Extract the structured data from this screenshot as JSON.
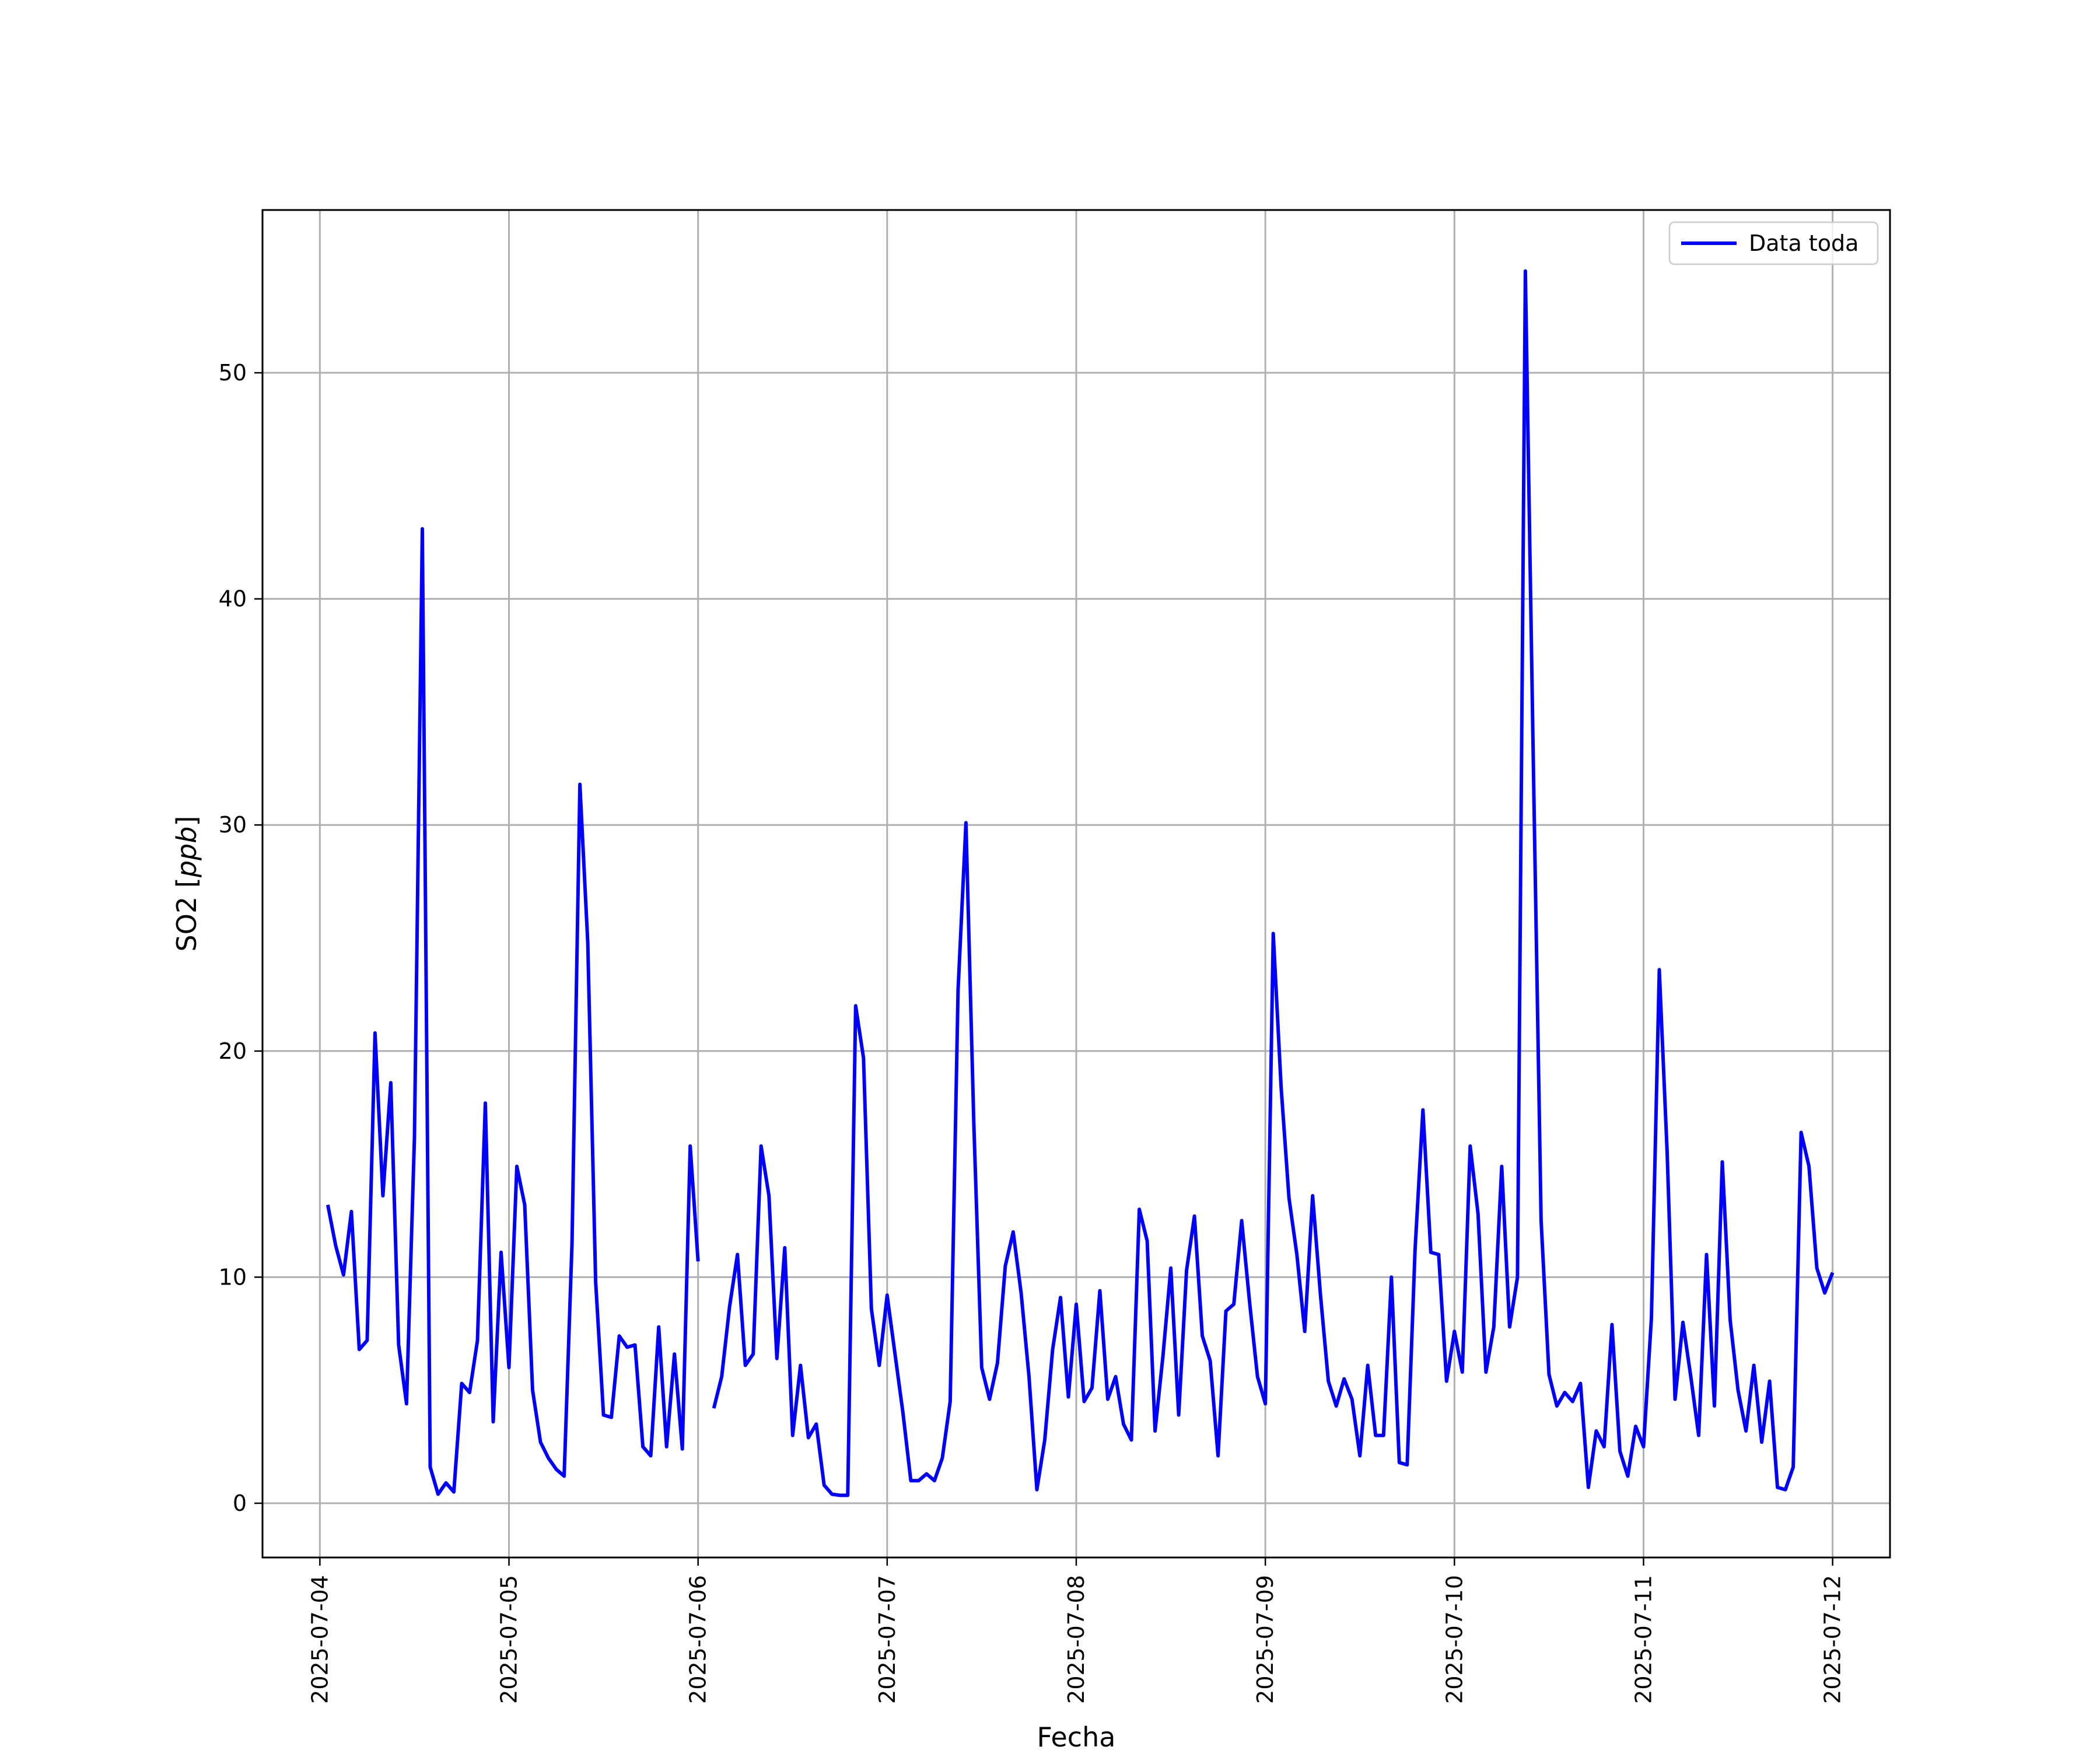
{
  "colors": {
    "series": "#0000ff",
    "grid": "#b0b0b0",
    "frame": "#000000",
    "background": "#ffffff"
  },
  "chart_data": {
    "type": "line",
    "title": "",
    "xlabel": "Fecha",
    "ylabel_prefix": "SO2 [",
    "ylabel_unit": "ppb",
    "ylabel_suffix": "]",
    "xlim": [
      "2025-07-03 16:43",
      "2025-07-12 07:17"
    ],
    "ylim": [
      -2.4,
      57.2
    ],
    "grid": true,
    "legend_position": "top-right",
    "x_ticks": [
      "2025-07-04",
      "2025-07-05",
      "2025-07-06",
      "2025-07-07",
      "2025-07-08",
      "2025-07-09",
      "2025-07-10",
      "2025-07-11",
      "2025-07-12"
    ],
    "y_ticks": [
      0,
      10,
      20,
      30,
      40,
      50
    ],
    "series": [
      {
        "name": "Data toda",
        "color": "#0000ff",
        "points": [
          [
            "2025-07-04 01:00",
            13.2
          ],
          [
            "2025-07-04 02:00",
            11.4
          ],
          [
            "2025-07-04 03:00",
            10.1
          ],
          [
            "2025-07-04 04:00",
            12.9
          ],
          [
            "2025-07-04 05:00",
            6.8
          ],
          [
            "2025-07-04 06:00",
            7.2
          ],
          [
            "2025-07-04 07:00",
            20.8
          ],
          [
            "2025-07-04 08:00",
            13.6
          ],
          [
            "2025-07-04 09:00",
            18.6
          ],
          [
            "2025-07-04 10:00",
            7.0
          ],
          [
            "2025-07-04 11:00",
            4.4
          ],
          [
            "2025-07-04 12:00",
            16.2
          ],
          [
            "2025-07-04 13:00",
            43.1
          ],
          [
            "2025-07-04 14:00",
            1.6
          ],
          [
            "2025-07-04 15:00",
            0.4
          ],
          [
            "2025-07-04 16:00",
            0.9
          ],
          [
            "2025-07-04 17:00",
            0.5
          ],
          [
            "2025-07-04 18:00",
            5.3
          ],
          [
            "2025-07-04 19:00",
            4.9
          ],
          [
            "2025-07-04 20:00",
            7.2
          ],
          [
            "2025-07-04 21:00",
            17.7
          ],
          [
            "2025-07-04 22:00",
            3.6
          ],
          [
            "2025-07-04 23:00",
            11.1
          ],
          [
            "2025-07-05 00:00",
            6.0
          ],
          [
            "2025-07-05 01:00",
            14.9
          ],
          [
            "2025-07-05 02:00",
            13.2
          ],
          [
            "2025-07-05 03:00",
            5.0
          ],
          [
            "2025-07-05 04:00",
            2.7
          ],
          [
            "2025-07-05 05:00",
            2.0
          ],
          [
            "2025-07-05 06:00",
            1.5
          ],
          [
            "2025-07-05 07:00",
            1.2
          ],
          [
            "2025-07-05 08:00",
            11.5
          ],
          [
            "2025-07-05 09:00",
            31.8
          ],
          [
            "2025-07-05 10:00",
            24.8
          ],
          [
            "2025-07-05 11:00",
            9.8
          ],
          [
            "2025-07-05 12:00",
            3.9
          ],
          [
            "2025-07-05 13:00",
            3.8
          ],
          [
            "2025-07-05 14:00",
            7.4
          ],
          [
            "2025-07-05 15:00",
            6.9
          ],
          [
            "2025-07-05 16:00",
            7.0
          ],
          [
            "2025-07-05 17:00",
            2.5
          ],
          [
            "2025-07-05 18:00",
            2.1
          ],
          [
            "2025-07-05 19:00",
            7.8
          ],
          [
            "2025-07-05 20:00",
            2.5
          ],
          [
            "2025-07-05 21:00",
            6.6
          ],
          [
            "2025-07-05 22:00",
            2.4
          ],
          [
            "2025-07-05 23:00",
            15.8
          ],
          [
            "2025-07-06 00:00",
            10.7
          ],
          null,
          [
            "2025-07-06 02:00",
            4.2
          ],
          [
            "2025-07-06 03:00",
            5.6
          ],
          [
            "2025-07-06 04:00",
            8.7
          ],
          [
            "2025-07-06 05:00",
            11.0
          ],
          [
            "2025-07-06 06:00",
            6.1
          ],
          [
            "2025-07-06 07:00",
            6.6
          ],
          [
            "2025-07-06 08:00",
            15.8
          ],
          [
            "2025-07-06 09:00",
            13.6
          ],
          [
            "2025-07-06 10:00",
            6.4
          ],
          [
            "2025-07-06 11:00",
            11.3
          ],
          [
            "2025-07-06 12:00",
            3.0
          ],
          [
            "2025-07-06 13:00",
            6.1
          ],
          [
            "2025-07-06 14:00",
            2.9
          ],
          [
            "2025-07-06 15:00",
            3.5
          ],
          [
            "2025-07-06 16:00",
            0.8
          ],
          [
            "2025-07-06 17:00",
            0.4
          ],
          [
            "2025-07-06 18:00",
            0.35
          ],
          [
            "2025-07-06 19:00",
            0.35
          ],
          [
            "2025-07-06 20:00",
            22.0
          ],
          [
            "2025-07-06 21:00",
            19.7
          ],
          [
            "2025-07-06 22:00",
            8.6
          ],
          [
            "2025-07-06 23:00",
            6.1
          ],
          [
            "2025-07-07 00:00",
            9.2
          ],
          [
            "2025-07-07 01:00",
            6.6
          ],
          [
            "2025-07-07 02:00",
            4.0
          ],
          [
            "2025-07-07 03:00",
            1.0
          ],
          [
            "2025-07-07 04:00",
            1.0
          ],
          [
            "2025-07-07 05:00",
            1.3
          ],
          [
            "2025-07-07 06:00",
            1.0
          ],
          [
            "2025-07-07 07:00",
            2.0
          ],
          [
            "2025-07-07 08:00",
            4.5
          ],
          [
            "2025-07-07 09:00",
            22.7
          ],
          [
            "2025-07-07 10:00",
            30.1
          ],
          [
            "2025-07-07 11:00",
            16.8
          ],
          [
            "2025-07-07 12:00",
            6.0
          ],
          [
            "2025-07-07 13:00",
            4.6
          ],
          [
            "2025-07-07 14:00",
            6.2
          ],
          [
            "2025-07-07 15:00",
            10.5
          ],
          [
            "2025-07-07 16:00",
            12.0
          ],
          [
            "2025-07-07 17:00",
            9.3
          ],
          [
            "2025-07-07 18:00",
            5.6
          ],
          [
            "2025-07-07 19:00",
            0.6
          ],
          [
            "2025-07-07 20:00",
            2.8
          ],
          [
            "2025-07-07 21:00",
            6.8
          ],
          [
            "2025-07-07 22:00",
            9.1
          ],
          [
            "2025-07-07 23:00",
            4.7
          ],
          [
            "2025-07-08 00:00",
            8.8
          ],
          [
            "2025-07-08 01:00",
            4.5
          ],
          [
            "2025-07-08 02:00",
            5.1
          ],
          [
            "2025-07-08 03:00",
            9.4
          ],
          [
            "2025-07-08 04:00",
            4.6
          ],
          [
            "2025-07-08 05:00",
            5.6
          ],
          [
            "2025-07-08 06:00",
            3.5
          ],
          [
            "2025-07-08 07:00",
            2.8
          ],
          [
            "2025-07-08 08:00",
            13.0
          ],
          [
            "2025-07-08 09:00",
            11.6
          ],
          [
            "2025-07-08 10:00",
            3.2
          ],
          [
            "2025-07-08 11:00",
            6.5
          ],
          [
            "2025-07-08 12:00",
            10.4
          ],
          [
            "2025-07-08 13:00",
            3.9
          ],
          [
            "2025-07-08 14:00",
            10.3
          ],
          [
            "2025-07-08 15:00",
            12.7
          ],
          [
            "2025-07-08 16:00",
            7.4
          ],
          [
            "2025-07-08 17:00",
            6.3
          ],
          [
            "2025-07-08 18:00",
            2.1
          ],
          [
            "2025-07-08 19:00",
            8.5
          ],
          [
            "2025-07-08 20:00",
            8.8
          ],
          [
            "2025-07-08 21:00",
            12.5
          ],
          [
            "2025-07-08 22:00",
            8.9
          ],
          [
            "2025-07-08 23:00",
            5.6
          ],
          [
            "2025-07-09 00:00",
            4.4
          ],
          [
            "2025-07-09 01:00",
            25.2
          ],
          [
            "2025-07-09 02:00",
            18.4
          ],
          [
            "2025-07-09 03:00",
            13.5
          ],
          [
            "2025-07-09 04:00",
            11.0
          ],
          [
            "2025-07-09 05:00",
            7.6
          ],
          [
            "2025-07-09 06:00",
            13.6
          ],
          [
            "2025-07-09 07:00",
            9.2
          ],
          [
            "2025-07-09 08:00",
            5.4
          ],
          [
            "2025-07-09 09:00",
            4.3
          ],
          [
            "2025-07-09 10:00",
            5.5
          ],
          [
            "2025-07-09 11:00",
            4.6
          ],
          [
            "2025-07-09 12:00",
            2.1
          ],
          [
            "2025-07-09 13:00",
            6.1
          ],
          [
            "2025-07-09 14:00",
            3.0
          ],
          [
            "2025-07-09 15:00",
            3.0
          ],
          [
            "2025-07-09 16:00",
            10.0
          ],
          [
            "2025-07-09 17:00",
            1.8
          ],
          [
            "2025-07-09 18:00",
            1.7
          ],
          [
            "2025-07-09 19:00",
            11.2
          ],
          [
            "2025-07-09 20:00",
            17.4
          ],
          [
            "2025-07-09 21:00",
            11.1
          ],
          [
            "2025-07-09 22:00",
            11.0
          ],
          [
            "2025-07-09 23:00",
            5.4
          ],
          [
            "2025-07-10 00:00",
            7.6
          ],
          [
            "2025-07-10 01:00",
            5.8
          ],
          [
            "2025-07-10 02:00",
            15.8
          ],
          [
            "2025-07-10 03:00",
            12.8
          ],
          [
            "2025-07-10 04:00",
            5.8
          ],
          [
            "2025-07-10 05:00",
            7.8
          ],
          [
            "2025-07-10 06:00",
            14.9
          ],
          [
            "2025-07-10 07:00",
            7.8
          ],
          [
            "2025-07-10 08:00",
            10.0
          ],
          [
            "2025-07-10 09:00",
            54.5
          ],
          [
            "2025-07-10 10:00",
            33.0
          ],
          [
            "2025-07-10 11:00",
            12.5
          ],
          [
            "2025-07-10 12:00",
            5.7
          ],
          [
            "2025-07-10 13:00",
            4.3
          ],
          [
            "2025-07-10 14:00",
            4.9
          ],
          [
            "2025-07-10 15:00",
            4.5
          ],
          [
            "2025-07-10 16:00",
            5.3
          ],
          [
            "2025-07-10 17:00",
            0.7
          ],
          [
            "2025-07-10 18:00",
            3.2
          ],
          [
            "2025-07-10 19:00",
            2.5
          ],
          [
            "2025-07-10 20:00",
            7.9
          ],
          [
            "2025-07-10 21:00",
            2.3
          ],
          [
            "2025-07-10 22:00",
            1.2
          ],
          [
            "2025-07-10 23:00",
            3.4
          ],
          [
            "2025-07-11 00:00",
            2.5
          ],
          [
            "2025-07-11 01:00",
            8.2
          ],
          [
            "2025-07-11 02:00",
            23.6
          ],
          [
            "2025-07-11 03:00",
            15.5
          ],
          [
            "2025-07-11 04:00",
            4.6
          ],
          [
            "2025-07-11 05:00",
            8.0
          ],
          [
            "2025-07-11 06:00",
            5.6
          ],
          [
            "2025-07-11 07:00",
            3.0
          ],
          [
            "2025-07-11 08:00",
            11.0
          ],
          [
            "2025-07-11 09:00",
            4.3
          ],
          [
            "2025-07-11 10:00",
            15.1
          ],
          [
            "2025-07-11 11:00",
            8.1
          ],
          [
            "2025-07-11 12:00",
            5.0
          ],
          [
            "2025-07-11 13:00",
            3.2
          ],
          [
            "2025-07-11 14:00",
            6.1
          ],
          [
            "2025-07-11 15:00",
            2.7
          ],
          [
            "2025-07-11 16:00",
            5.4
          ],
          [
            "2025-07-11 17:00",
            0.7
          ],
          [
            "2025-07-11 18:00",
            0.6
          ],
          [
            "2025-07-11 19:00",
            1.6
          ],
          [
            "2025-07-11 20:00",
            16.4
          ],
          [
            "2025-07-11 21:00",
            14.9
          ],
          [
            "2025-07-11 22:00",
            10.4
          ],
          [
            "2025-07-11 23:00",
            9.3
          ],
          [
            "2025-07-12 00:00",
            10.2
          ]
        ]
      }
    ]
  }
}
